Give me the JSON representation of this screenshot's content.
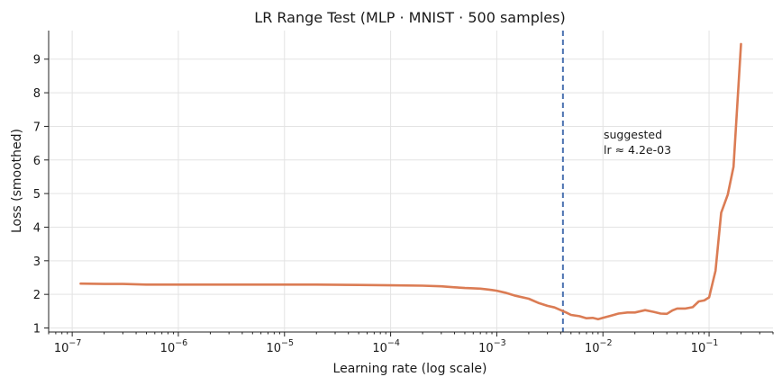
{
  "chart_data": {
    "type": "line",
    "title": "LR Range Test  (MLP · MNIST · 500 samples)",
    "xlabel": "Learning rate (log scale)",
    "ylabel": "Loss (smoothed)",
    "xscale": "log",
    "xlim": [
      6e-08,
      0.4
    ],
    "ylim": [
      0.88,
      9.85
    ],
    "xticks": [
      {
        "value": 1e-07,
        "base": "10",
        "exp": "−7"
      },
      {
        "value": 1e-06,
        "base": "10",
        "exp": "−6"
      },
      {
        "value": 1e-05,
        "base": "10",
        "exp": "−5"
      },
      {
        "value": 0.0001,
        "base": "10",
        "exp": "−4"
      },
      {
        "value": 0.001,
        "base": "10",
        "exp": "−3"
      },
      {
        "value": 0.01,
        "base": "10",
        "exp": "−2"
      },
      {
        "value": 0.1,
        "base": "10",
        "exp": "−1"
      }
    ],
    "yticks": [
      {
        "value": 1,
        "label": "1"
      },
      {
        "value": 2,
        "label": "2"
      },
      {
        "value": 3,
        "label": "3"
      },
      {
        "value": 4,
        "label": "4"
      },
      {
        "value": 5,
        "label": "5"
      },
      {
        "value": 6,
        "label": "6"
      },
      {
        "value": 7,
        "label": "7"
      },
      {
        "value": 8,
        "label": "8"
      },
      {
        "value": 9,
        "label": "9"
      }
    ],
    "grid": true,
    "series": [
      {
        "color": "#db7c54",
        "x": [
          1.2e-07,
          2e-07,
          3e-07,
          5e-07,
          1e-06,
          2e-06,
          5e-06,
          1e-05,
          2e-05,
          5e-05,
          0.0001,
          0.0002,
          0.0003,
          0.0004,
          0.0005,
          0.0006,
          0.0007,
          0.0008,
          0.0009,
          0.001,
          0.0012,
          0.0015,
          0.002,
          0.0025,
          0.003,
          0.0035,
          0.004,
          0.0045,
          0.005,
          0.006,
          0.007,
          0.008,
          0.009,
          0.01,
          0.012,
          0.014,
          0.017,
          0.02,
          0.025,
          0.03,
          0.035,
          0.04,
          0.045,
          0.05,
          0.06,
          0.07,
          0.08,
          0.09,
          0.1,
          0.115,
          0.13,
          0.15,
          0.17,
          0.2
        ],
        "y": [
          2.32,
          2.31,
          2.31,
          2.29,
          2.29,
          2.29,
          2.29,
          2.29,
          2.29,
          2.28,
          2.27,
          2.26,
          2.24,
          2.21,
          2.19,
          2.18,
          2.17,
          2.15,
          2.13,
          2.11,
          2.05,
          1.96,
          1.87,
          1.74,
          1.66,
          1.61,
          1.53,
          1.46,
          1.39,
          1.35,
          1.29,
          1.3,
          1.26,
          1.3,
          1.37,
          1.43,
          1.46,
          1.46,
          1.53,
          1.48,
          1.43,
          1.42,
          1.52,
          1.58,
          1.58,
          1.62,
          1.79,
          1.82,
          1.91,
          2.7,
          4.43,
          4.97,
          5.8,
          9.45
        ]
      }
    ],
    "annotations": [
      {
        "type": "vline",
        "x": 0.0042,
        "color": "#4b72b0",
        "style": "dashed"
      },
      {
        "type": "text",
        "lines": [
          "suggested",
          "lr ≈ 4.2e-03"
        ],
        "color": "#4b72b0"
      }
    ]
  }
}
